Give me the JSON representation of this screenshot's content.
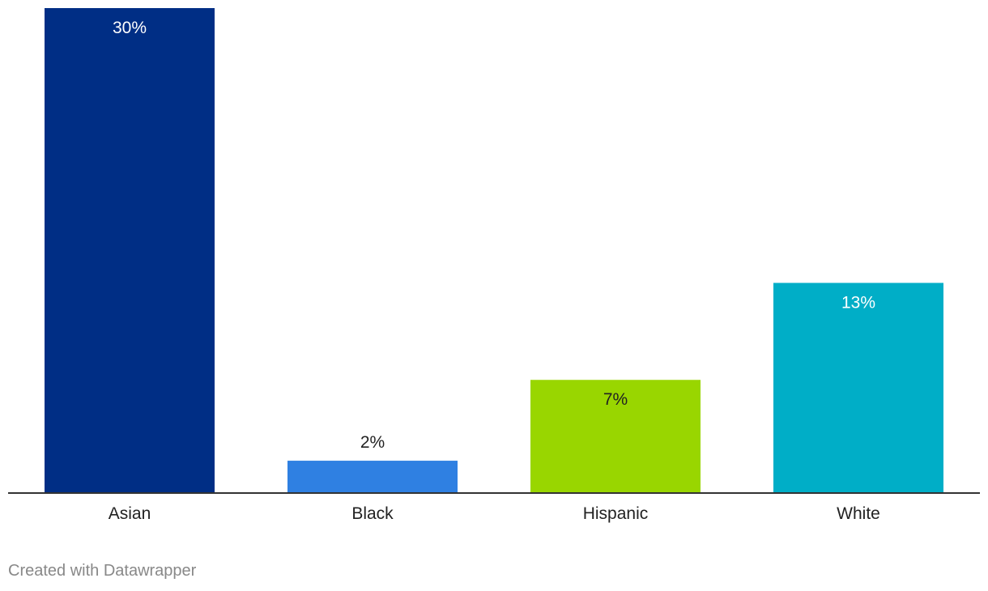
{
  "chart_data": {
    "type": "bar",
    "title": "",
    "xlabel": "",
    "ylabel": "",
    "categories": [
      "Asian",
      "Black",
      "Hispanic",
      "White"
    ],
    "values": [
      30,
      2,
      7,
      13
    ],
    "value_labels": [
      "30%",
      "2%",
      "7%",
      "13%"
    ],
    "bar_colors": [
      "#002E85",
      "#2F80E2",
      "#99D600",
      "#00AEC7"
    ],
    "label_colors": [
      "#FFFFFF",
      "#222222",
      "#222222",
      "#FFFFFF"
    ],
    "ylim": [
      0,
      30
    ],
    "grid": false,
    "legend": "none"
  },
  "footer": {
    "credit": "Created with Datawrapper"
  }
}
